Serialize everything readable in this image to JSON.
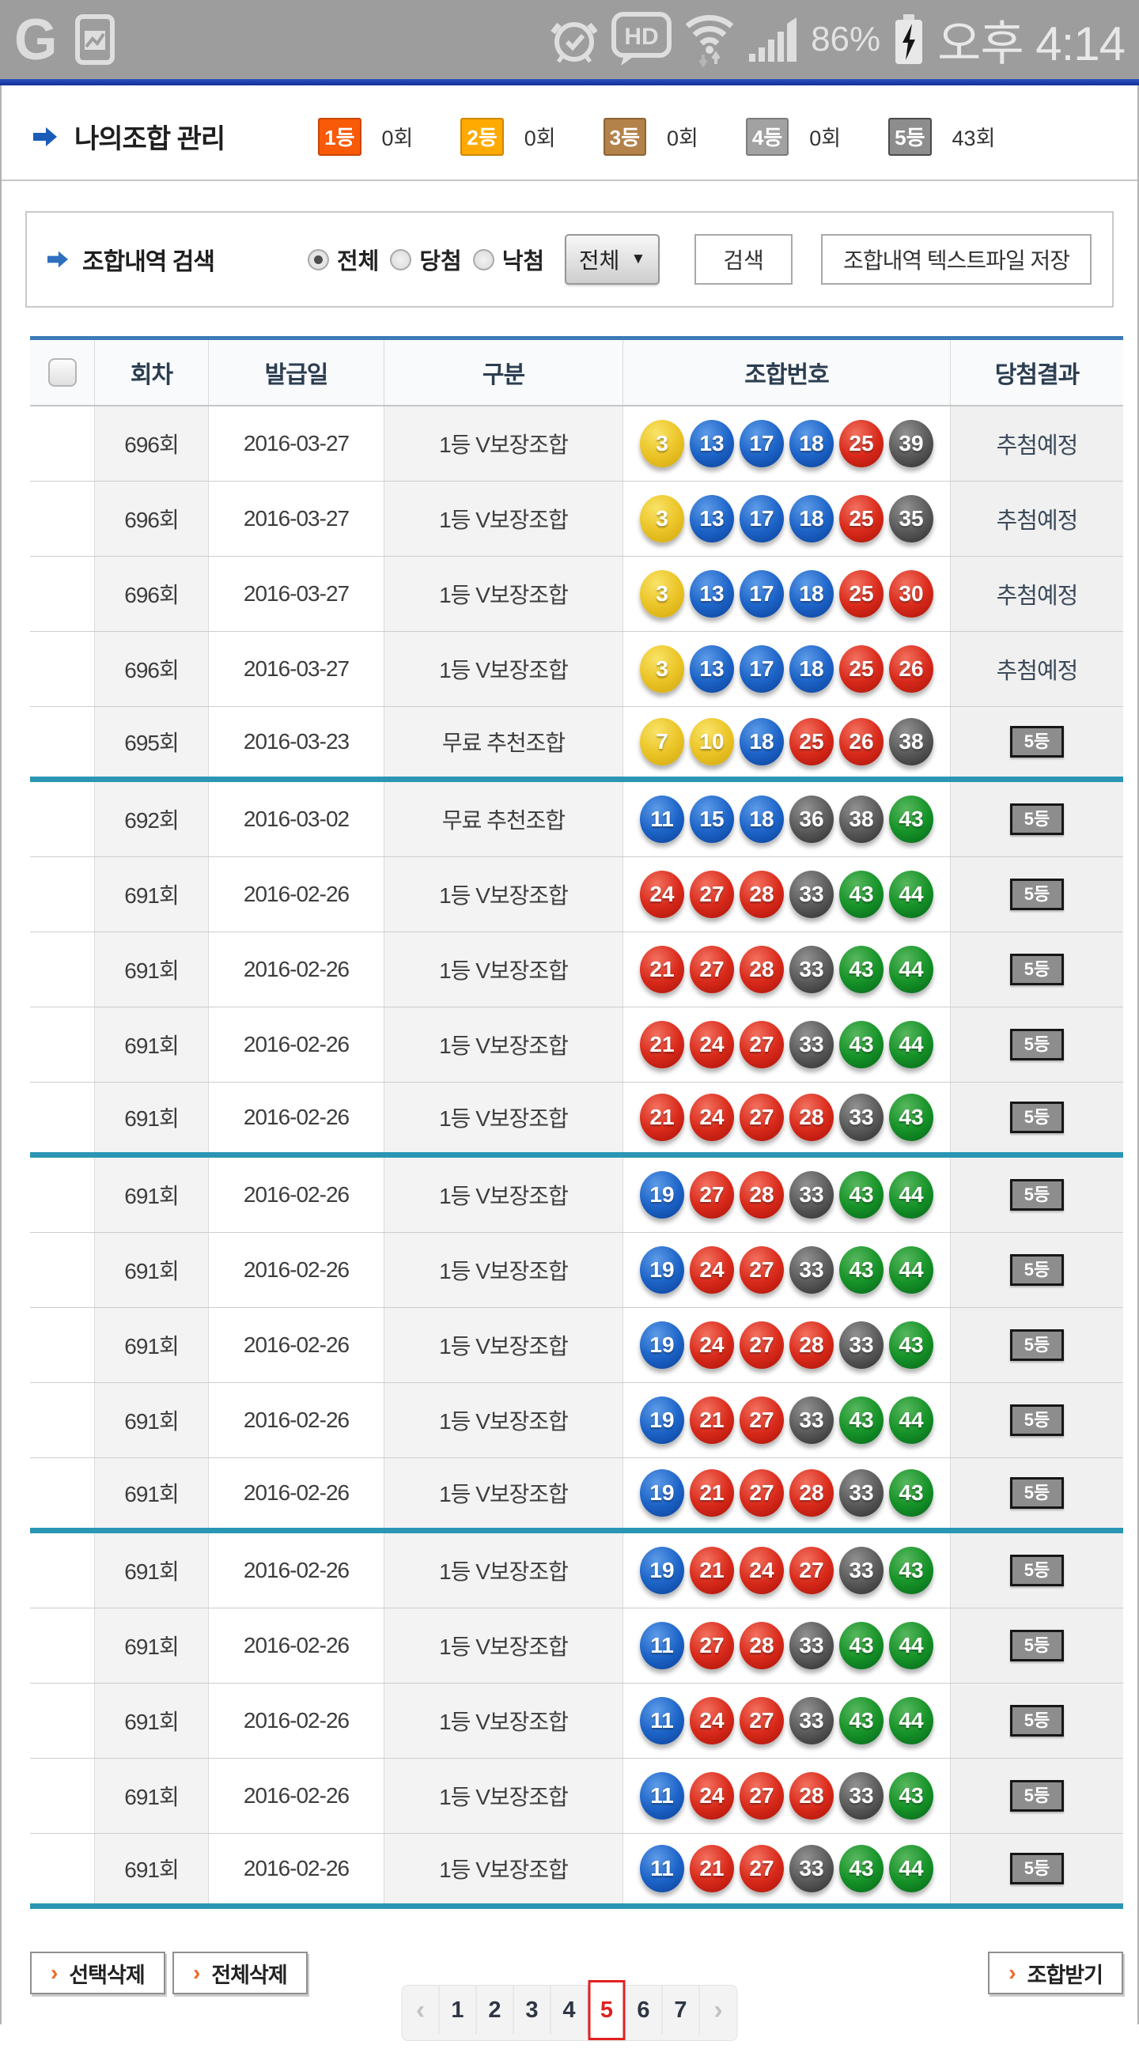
{
  "status_bar": {
    "app_letter": "G",
    "time": "오후 4:14",
    "battery_percent": "86%",
    "hd_label": "HD",
    "icons": [
      "gallery-icon",
      "alarm-icon",
      "hd-badge-icon",
      "wifi-icon",
      "signal-bars-icon",
      "battery-charging-icon"
    ]
  },
  "header": {
    "title": "나의조합 관리",
    "ranks": [
      {
        "label": "1등",
        "count": "0회",
        "bg": "#f85a08",
        "border": "#c84600"
      },
      {
        "label": "2등",
        "count": "0회",
        "bg": "#ffaa00",
        "border": "#cc8800"
      },
      {
        "label": "3등",
        "count": "0회",
        "bg": "#b3824a",
        "border": "#8a6434"
      },
      {
        "label": "4등",
        "count": "0회",
        "bg": "#a2a2a2",
        "border": "#7c7c7c"
      },
      {
        "label": "5등",
        "count": "43회",
        "bg": "#8d8d8d",
        "border": "#4a4a4a"
      }
    ]
  },
  "search": {
    "title": "조합내역 검색",
    "radios": [
      {
        "label": "전체",
        "selected": true
      },
      {
        "label": "당첨",
        "selected": false
      },
      {
        "label": "낙첨",
        "selected": false
      }
    ],
    "dropdown_value": "전체",
    "dropdown_arrow": "▼",
    "search_button": "검색",
    "save_button": "조합내역 텍스트파일 저장"
  },
  "table": {
    "columns": [
      "회차",
      "발급일",
      "구분",
      "조합번호",
      "당첨결과"
    ],
    "rows": [
      {
        "round": "696회",
        "date": "2016-03-27",
        "type": "1등 V보장조합",
        "numbers": [
          3,
          13,
          17,
          18,
          25,
          39
        ],
        "result": "추첨예정",
        "result_style": "text",
        "group_end": false
      },
      {
        "round": "696회",
        "date": "2016-03-27",
        "type": "1등 V보장조합",
        "numbers": [
          3,
          13,
          17,
          18,
          25,
          35
        ],
        "result": "추첨예정",
        "result_style": "text",
        "group_end": false
      },
      {
        "round": "696회",
        "date": "2016-03-27",
        "type": "1등 V보장조합",
        "numbers": [
          3,
          13,
          17,
          18,
          25,
          30
        ],
        "result": "추첨예정",
        "result_style": "text",
        "group_end": false
      },
      {
        "round": "696회",
        "date": "2016-03-27",
        "type": "1등 V보장조합",
        "numbers": [
          3,
          13,
          17,
          18,
          25,
          26
        ],
        "result": "추첨예정",
        "result_style": "text",
        "group_end": false
      },
      {
        "round": "695회",
        "date": "2016-03-23",
        "type": "무료 추천조합",
        "numbers": [
          7,
          10,
          18,
          25,
          26,
          38
        ],
        "result": "5등",
        "result_style": "badge",
        "group_end": true
      },
      {
        "round": "692회",
        "date": "2016-03-02",
        "type": "무료 추천조합",
        "numbers": [
          11,
          15,
          18,
          36,
          38,
          43
        ],
        "result": "5등",
        "result_style": "badge",
        "group_end": false
      },
      {
        "round": "691회",
        "date": "2016-02-26",
        "type": "1등 V보장조합",
        "numbers": [
          24,
          27,
          28,
          33,
          43,
          44
        ],
        "result": "5등",
        "result_style": "badge",
        "group_end": false
      },
      {
        "round": "691회",
        "date": "2016-02-26",
        "type": "1등 V보장조합",
        "numbers": [
          21,
          27,
          28,
          33,
          43,
          44
        ],
        "result": "5등",
        "result_style": "badge",
        "group_end": false
      },
      {
        "round": "691회",
        "date": "2016-02-26",
        "type": "1등 V보장조합",
        "numbers": [
          21,
          24,
          27,
          33,
          43,
          44
        ],
        "result": "5등",
        "result_style": "badge",
        "group_end": false
      },
      {
        "round": "691회",
        "date": "2016-02-26",
        "type": "1등 V보장조합",
        "numbers": [
          21,
          24,
          27,
          28,
          33,
          43
        ],
        "result": "5등",
        "result_style": "badge",
        "group_end": true
      },
      {
        "round": "691회",
        "date": "2016-02-26",
        "type": "1등 V보장조합",
        "numbers": [
          19,
          27,
          28,
          33,
          43,
          44
        ],
        "result": "5등",
        "result_style": "badge",
        "group_end": false
      },
      {
        "round": "691회",
        "date": "2016-02-26",
        "type": "1등 V보장조합",
        "numbers": [
          19,
          24,
          27,
          33,
          43,
          44
        ],
        "result": "5등",
        "result_style": "badge",
        "group_end": false
      },
      {
        "round": "691회",
        "date": "2016-02-26",
        "type": "1등 V보장조합",
        "numbers": [
          19,
          24,
          27,
          28,
          33,
          43
        ],
        "result": "5등",
        "result_style": "badge",
        "group_end": false
      },
      {
        "round": "691회",
        "date": "2016-02-26",
        "type": "1등 V보장조합",
        "numbers": [
          19,
          21,
          27,
          33,
          43,
          44
        ],
        "result": "5등",
        "result_style": "badge",
        "group_end": false
      },
      {
        "round": "691회",
        "date": "2016-02-26",
        "type": "1등 V보장조합",
        "numbers": [
          19,
          21,
          27,
          28,
          33,
          43
        ],
        "result": "5등",
        "result_style": "badge",
        "group_end": true
      },
      {
        "round": "691회",
        "date": "2016-02-26",
        "type": "1등 V보장조합",
        "numbers": [
          19,
          21,
          24,
          27,
          33,
          43
        ],
        "result": "5등",
        "result_style": "badge",
        "group_end": false
      },
      {
        "round": "691회",
        "date": "2016-02-26",
        "type": "1등 V보장조합",
        "numbers": [
          11,
          27,
          28,
          33,
          43,
          44
        ],
        "result": "5등",
        "result_style": "badge",
        "group_end": false
      },
      {
        "round": "691회",
        "date": "2016-02-26",
        "type": "1등 V보장조합",
        "numbers": [
          11,
          24,
          27,
          33,
          43,
          44
        ],
        "result": "5등",
        "result_style": "badge",
        "group_end": false
      },
      {
        "round": "691회",
        "date": "2016-02-26",
        "type": "1등 V보장조합",
        "numbers": [
          11,
          24,
          27,
          28,
          33,
          43
        ],
        "result": "5등",
        "result_style": "badge",
        "group_end": false
      },
      {
        "round": "691회",
        "date": "2016-02-26",
        "type": "1등 V보장조합",
        "numbers": [
          11,
          21,
          27,
          33,
          43,
          44
        ],
        "result": "5등",
        "result_style": "badge",
        "group_end": true
      }
    ]
  },
  "footer": {
    "delete_selected_button": "선택삭제",
    "delete_all_button": "전체삭제",
    "receive_button": "조합받기",
    "arrow_glyph": "›"
  },
  "pagination": {
    "prev": "‹",
    "next": "›",
    "pages": [
      "1",
      "2",
      "3",
      "4",
      "5",
      "6",
      "7"
    ],
    "current": "5"
  },
  "colors": {
    "status_bar_bg": "#9d9d9d",
    "top_bar_blue": "#18339c",
    "table_top_blue": "#3c7ab8",
    "group_separator_teal": "#2b96b4",
    "active_page_red": "#e02020",
    "action_arrow_orange": "#f26722",
    "ball_yellow": "#ecc62a",
    "ball_blue": "#1d64c8",
    "ball_red": "#d92a1b",
    "ball_gray": "#555555",
    "ball_green": "#169328"
  }
}
